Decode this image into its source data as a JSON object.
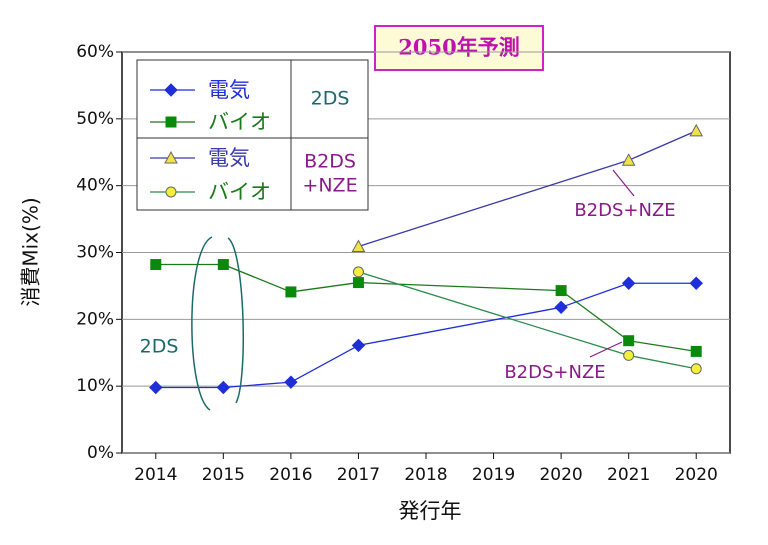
{
  "chart_data": {
    "type": "line",
    "title": "2050年予測",
    "x_label": "発行年",
    "y_label": "消費Mix(%)",
    "categories": [
      "2014",
      "2015",
      "2016",
      "2017",
      "2018",
      "2019",
      "2020",
      "2021",
      "2020"
    ],
    "ylim": [
      0,
      60
    ],
    "yticks": [
      {
        "value": 0,
        "label": "0%"
      },
      {
        "value": 10,
        "label": "10%"
      },
      {
        "value": 20,
        "label": "20%"
      },
      {
        "value": 30,
        "label": "30%"
      },
      {
        "value": 40,
        "label": "40%"
      },
      {
        "value": 50,
        "label": "50%"
      },
      {
        "value": 60,
        "label": "60%"
      }
    ],
    "grid": true,
    "legend_groups": [
      [
        "2DS"
      ],
      [
        "B2DS",
        "+NZE"
      ]
    ],
    "series": [
      {
        "name": "電気",
        "group": 0,
        "marker": "diamond",
        "color": "#1f2fd8",
        "marker_fill": "#1f2fd8",
        "values": [
          9.8,
          9.8,
          10.6,
          16.1,
          null,
          null,
          21.8,
          25.4,
          25.4
        ]
      },
      {
        "name": "バイオ",
        "group": 0,
        "marker": "square",
        "color": "#1a7a1a",
        "marker_fill": "#0a8a0a",
        "values": [
          28.2,
          28.2,
          24.1,
          25.5,
          null,
          null,
          24.3,
          16.8,
          15.2
        ]
      },
      {
        "name": "電気",
        "group": 1,
        "marker": "triangle",
        "color": "#3a3aa8",
        "marker_fill": "#f2e24a",
        "values": [
          null,
          null,
          null,
          30.9,
          null,
          null,
          null,
          43.8,
          48.2
        ]
      },
      {
        "name": "バイオ",
        "group": 1,
        "marker": "circle",
        "color": "#2a8a4a",
        "marker_fill": "#f4f03a",
        "values": [
          null,
          null,
          null,
          27.1,
          null,
          null,
          null,
          14.6,
          12.6
        ]
      }
    ],
    "annotations": [
      "B2DS+NZE",
      "B2DS+NZE",
      "2DS"
    ]
  }
}
